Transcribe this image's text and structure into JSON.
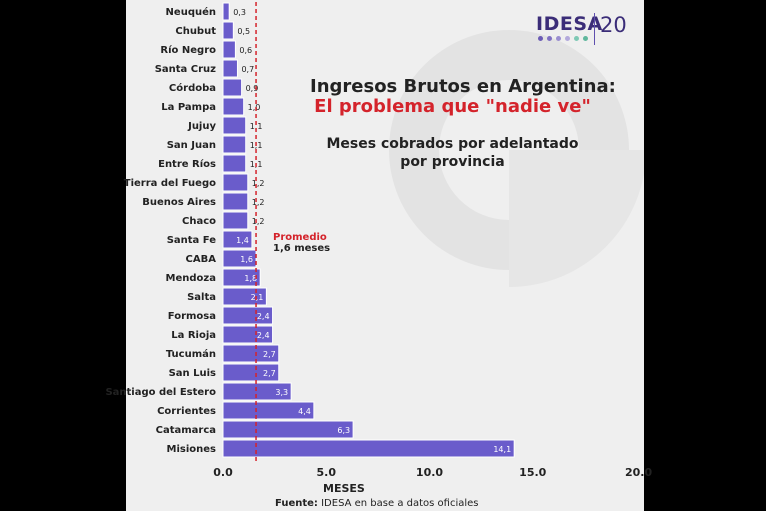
{
  "title_line1": "Ingresos Brutos en Argentina:",
  "title_line2": "El problema que \"nadie ve\"",
  "subtitle_line1": "Meses cobrados por adelantado",
  "subtitle_line2": "por provincia",
  "average": {
    "label": "Promedio",
    "value_text": "1,6 meses",
    "value": 1.6
  },
  "logo": {
    "text": "IDESA",
    "number": "20",
    "dot_colors": [
      "#6b5bb5",
      "#7f70c2",
      "#9a8ed0",
      "#b3a9dc",
      "#7ec9b5",
      "#5fb79d"
    ]
  },
  "source": {
    "label": "Fuente:",
    "text": "IDESA en base a datos oficiales"
  },
  "colors": {
    "bar": "#6a5ccb",
    "bar_border": "#ffffff",
    "average_line": "#d4232b",
    "title_accent": "#d4232b"
  },
  "chart_data": {
    "type": "bar",
    "orientation": "horizontal",
    "xlabel": "MESES",
    "xlim": [
      0,
      20
    ],
    "x_ticks": [
      "0.0",
      "5.0",
      "10.0",
      "15.0",
      "20.0"
    ],
    "categories": [
      "Neuquén",
      "Chubut",
      "Río Negro",
      "Santa Cruz",
      "Córdoba",
      "La Pampa",
      "Jujuy",
      "San Juan",
      "Entre Ríos",
      "Tierra del Fuego",
      "Buenos Aires",
      "Chaco",
      "Santa Fe",
      "CABA",
      "Mendoza",
      "Salta",
      "Formosa",
      "La Rioja",
      "Tucumán",
      "San Luis",
      "Santiago del Estero",
      "Corrientes",
      "Catamarca",
      "Misiones"
    ],
    "values": [
      0.3,
      0.5,
      0.6,
      0.7,
      0.9,
      1.0,
      1.1,
      1.1,
      1.1,
      1.2,
      1.2,
      1.2,
      1.4,
      1.6,
      1.8,
      2.1,
      2.4,
      2.4,
      2.7,
      2.7,
      3.3,
      4.4,
      6.3,
      14.1
    ],
    "value_labels": [
      "0,3",
      "0,5",
      "0,6",
      "0,7",
      "0,9",
      "1,0",
      "1,1",
      "1,1",
      "1,1",
      "1,2",
      "1,2",
      "1,2",
      "1,4",
      "1,6",
      "1,8",
      "2,1",
      "2,4",
      "2,4",
      "2,7",
      "2,7",
      "3,3",
      "4,4",
      "6,3",
      "14,1"
    ]
  }
}
